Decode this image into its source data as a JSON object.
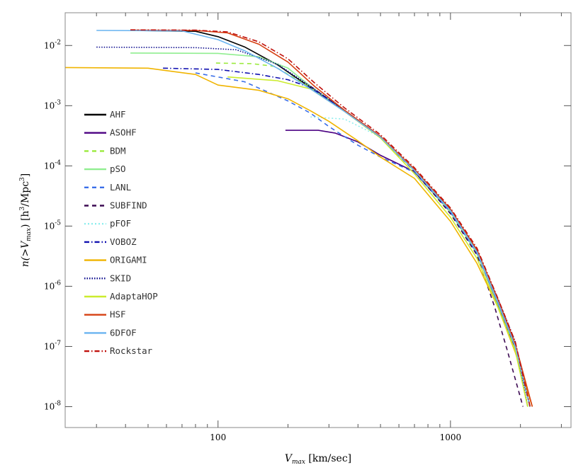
{
  "chart_data": {
    "type": "line",
    "title": "",
    "xlabel": {
      "main": "V",
      "sub": "max",
      "units": " [km/sec]"
    },
    "ylabel": {
      "pre": "n(>V",
      "sub": "max",
      "mid": ") [h",
      "sup1": "3",
      "mid2": "/Mpc",
      "sup2": "3",
      "post": "]"
    },
    "x_scale": "log",
    "y_scale": "log",
    "xlim": [
      22,
      3300
    ],
    "ylim": [
      4.5e-09,
      0.035
    ],
    "x_ticks": [
      {
        "value": 100,
        "label": "100"
      },
      {
        "value": 1000,
        "label": "1000"
      }
    ],
    "y_ticks": [
      {
        "value": 1e-08,
        "base": "10",
        "exp": "-8"
      },
      {
        "value": 1e-07,
        "base": "10",
        "exp": "-7"
      },
      {
        "value": 1e-06,
        "base": "10",
        "exp": "-6"
      },
      {
        "value": 1e-05,
        "base": "10",
        "exp": "-5"
      },
      {
        "value": 0.0001,
        "base": "10",
        "exp": "-4"
      },
      {
        "value": 0.001,
        "base": "10",
        "exp": "-3"
      },
      {
        "value": 0.01,
        "base": "10",
        "exp": "-2"
      }
    ],
    "legend_position": "left",
    "series": [
      {
        "name": "AHF",
        "color": "#000000",
        "dash": "solid",
        "points": [
          [
            42,
            0.0178
          ],
          [
            80,
            0.0172
          ],
          [
            100,
            0.014
          ],
          [
            130,
            0.0095
          ],
          [
            180,
            0.0048
          ],
          [
            250,
            0.002
          ],
          [
            350,
            0.00082
          ],
          [
            500,
            0.0003
          ],
          [
            700,
            8.5e-05
          ],
          [
            1000,
            1.8e-05
          ],
          [
            1300,
            3.8e-06
          ],
          [
            1600,
            5.5e-07
          ],
          [
            1900,
            1e-07
          ],
          [
            2200,
            1e-08
          ]
        ]
      },
      {
        "name": "ASOHF",
        "color": "#4b0082",
        "dash": "solid",
        "points": [
          [
            195,
            0.00039
          ],
          [
            270,
            0.00039
          ],
          [
            320,
            0.00035
          ],
          [
            400,
            0.00025
          ],
          [
            500,
            0.00015
          ],
          [
            700,
            8e-05
          ],
          [
            1000,
            1.7e-05
          ],
          [
            1300,
            3.5e-06
          ],
          [
            1600,
            5e-07
          ],
          [
            1900,
            9e-08
          ],
          [
            2150,
            1e-08
          ]
        ]
      },
      {
        "name": "BDM",
        "color": "#9aea3c",
        "dash": "6,5",
        "points": [
          [
            98,
            0.0051
          ],
          [
            140,
            0.005
          ],
          [
            175,
            0.0045
          ],
          [
            250,
            0.002
          ],
          [
            350,
            0.00082
          ],
          [
            500,
            0.0003
          ],
          [
            700,
            8.2e-05
          ],
          [
            1000,
            1.7e-05
          ],
          [
            1300,
            3.5e-06
          ],
          [
            1600,
            5e-07
          ],
          [
            1900,
            9.5e-08
          ],
          [
            2150,
            1e-08
          ]
        ]
      },
      {
        "name": "pSO",
        "color": "#90ee90",
        "dash": "solid",
        "points": [
          [
            42,
            0.0075
          ],
          [
            100,
            0.0074
          ],
          [
            150,
            0.0065
          ],
          [
            200,
            0.0042
          ],
          [
            250,
            0.0021
          ],
          [
            350,
            0.00082
          ],
          [
            500,
            0.0003
          ],
          [
            700,
            8.3e-05
          ],
          [
            1000,
            1.7e-05
          ],
          [
            1300,
            3.5e-06
          ],
          [
            1600,
            5.2e-07
          ],
          [
            1900,
            1e-07
          ],
          [
            2200,
            1e-08
          ]
        ]
      },
      {
        "name": "LANL",
        "color": "#3a6ee8",
        "dash": "6,5",
        "points": [
          [
            80,
            0.0035
          ],
          [
            130,
            0.0025
          ],
          [
            200,
            0.0012
          ],
          [
            250,
            0.00075
          ],
          [
            300,
            0.00045
          ],
          [
            400,
            0.00022
          ],
          [
            500,
            0.00014
          ],
          [
            700,
            7.8e-05
          ],
          [
            1000,
            1.7e-05
          ],
          [
            1300,
            3.5e-06
          ],
          [
            1600,
            5.3e-07
          ],
          [
            1900,
            1e-07
          ],
          [
            2200,
            1e-08
          ]
        ]
      },
      {
        "name": "SUBFIND",
        "color": "#3c0a52",
        "dash": "6,5",
        "points": [
          [
            250,
            0.0021
          ],
          [
            350,
            0.00082
          ],
          [
            500,
            0.0003
          ],
          [
            700,
            8.2e-05
          ],
          [
            1000,
            1.6e-05
          ],
          [
            1300,
            3.3e-06
          ],
          [
            1550,
            4.5e-07
          ],
          [
            1750,
            9e-08
          ],
          [
            2050,
            1e-08
          ]
        ]
      },
      {
        "name": "pFOF",
        "color": "#8eeeee",
        "dash": "2,3",
        "points": [
          [
            250,
            0.00065
          ],
          [
            350,
            0.0006
          ],
          [
            500,
            0.0003
          ],
          [
            700,
            8.5e-05
          ],
          [
            1000,
            1.8e-05
          ],
          [
            1300,
            3.8e-06
          ],
          [
            1600,
            5.7e-07
          ],
          [
            1900,
            1.1e-07
          ],
          [
            2150,
            1e-08
          ]
        ]
      },
      {
        "name": "VOBOZ",
        "color": "#1010b0",
        "dash": "7,3,1.5,3",
        "points": [
          [
            58,
            0.0042
          ],
          [
            100,
            0.004
          ],
          [
            150,
            0.0033
          ],
          [
            200,
            0.0027
          ],
          [
            250,
            0.002
          ],
          [
            350,
            0.00082
          ],
          [
            500,
            0.0003
          ],
          [
            700,
            8.5e-05
          ],
          [
            1000,
            1.8e-05
          ],
          [
            1300,
            3.8e-06
          ],
          [
            1600,
            5.5e-07
          ],
          [
            1900,
            1e-07
          ],
          [
            2200,
            1e-08
          ]
        ]
      },
      {
        "name": "ORIGAMI",
        "color": "#f0b400",
        "dash": "solid",
        "points": [
          [
            22,
            0.0043
          ],
          [
            50,
            0.0042
          ],
          [
            80,
            0.0033
          ],
          [
            100,
            0.0022
          ],
          [
            150,
            0.0018
          ],
          [
            200,
            0.0013
          ],
          [
            250,
            0.00082
          ],
          [
            300,
            0.00055
          ],
          [
            400,
            0.00026
          ],
          [
            500,
            0.00014
          ],
          [
            700,
            6.2e-05
          ],
          [
            1000,
            1.2e-05
          ],
          [
            1300,
            2.4e-06
          ],
          [
            1600,
            4.5e-07
          ],
          [
            1900,
            8e-08
          ],
          [
            2250,
            1e-08
          ]
        ]
      },
      {
        "name": "SKID",
        "color": "#0a0a8c",
        "dash": "1.5,2",
        "points": [
          [
            30,
            0.0094
          ],
          [
            80,
            0.0092
          ],
          [
            120,
            0.0085
          ],
          [
            180,
            0.0049
          ],
          [
            250,
            0.0021
          ],
          [
            350,
            0.00084
          ],
          [
            500,
            0.00031
          ],
          [
            700,
            8.8e-05
          ],
          [
            1000,
            1.9e-05
          ],
          [
            1300,
            4e-06
          ],
          [
            1600,
            6.2e-07
          ],
          [
            1900,
            1.2e-07
          ],
          [
            2150,
            1e-08
          ]
        ]
      },
      {
        "name": "AdaptaHOP",
        "color": "#ccec2e",
        "dash": "solid",
        "points": [
          [
            110,
            0.003
          ],
          [
            180,
            0.0026
          ],
          [
            250,
            0.0019
          ],
          [
            350,
            0.0008
          ],
          [
            500,
            0.00029
          ],
          [
            700,
            7.4e-05
          ],
          [
            1000,
            1.4e-05
          ],
          [
            1300,
            2.9e-06
          ],
          [
            1600,
            4.5e-07
          ],
          [
            1900,
            8.5e-08
          ],
          [
            2150,
            1e-08
          ]
        ]
      },
      {
        "name": "HSF",
        "color": "#d64012",
        "dash": "solid",
        "points": [
          [
            42,
            0.018
          ],
          [
            80,
            0.0178
          ],
          [
            110,
            0.0162
          ],
          [
            150,
            0.0105
          ],
          [
            200,
            0.0053
          ],
          [
            260,
            0.0021
          ],
          [
            350,
            0.00084
          ],
          [
            500,
            0.00031
          ],
          [
            700,
            8.8e-05
          ],
          [
            1000,
            1.9e-05
          ],
          [
            1300,
            4e-06
          ],
          [
            1600,
            6e-07
          ],
          [
            1900,
            1.1e-07
          ],
          [
            2250,
            1e-08
          ]
        ]
      },
      {
        "name": "6DFOF",
        "color": "#6ab4f0",
        "dash": "solid",
        "points": [
          [
            30,
            0.0178
          ],
          [
            70,
            0.0175
          ],
          [
            100,
            0.0125
          ],
          [
            130,
            0.0082
          ],
          [
            180,
            0.0042
          ],
          [
            250,
            0.0019
          ],
          [
            350,
            0.0008
          ],
          [
            500,
            0.0003
          ],
          [
            700,
            8.4e-05
          ],
          [
            1000,
            1.8e-05
          ],
          [
            1300,
            3.7e-06
          ],
          [
            1600,
            5.5e-07
          ],
          [
            1900,
            1e-07
          ],
          [
            2200,
            1e-08
          ]
        ]
      },
      {
        "name": "Rockstar",
        "color": "#c0100c",
        "dash": "7,3,1.5,3",
        "points": [
          [
            42,
            0.0182
          ],
          [
            80,
            0.018
          ],
          [
            110,
            0.0168
          ],
          [
            150,
            0.0115
          ],
          [
            200,
            0.006
          ],
          [
            260,
            0.0024
          ],
          [
            350,
            0.00092
          ],
          [
            500,
            0.00033
          ],
          [
            700,
            9.3e-05
          ],
          [
            1000,
            2e-05
          ],
          [
            1300,
            4.3e-06
          ],
          [
            1600,
            6.3e-07
          ],
          [
            1900,
            1.2e-07
          ],
          [
            2200,
            1e-08
          ]
        ]
      }
    ]
  }
}
